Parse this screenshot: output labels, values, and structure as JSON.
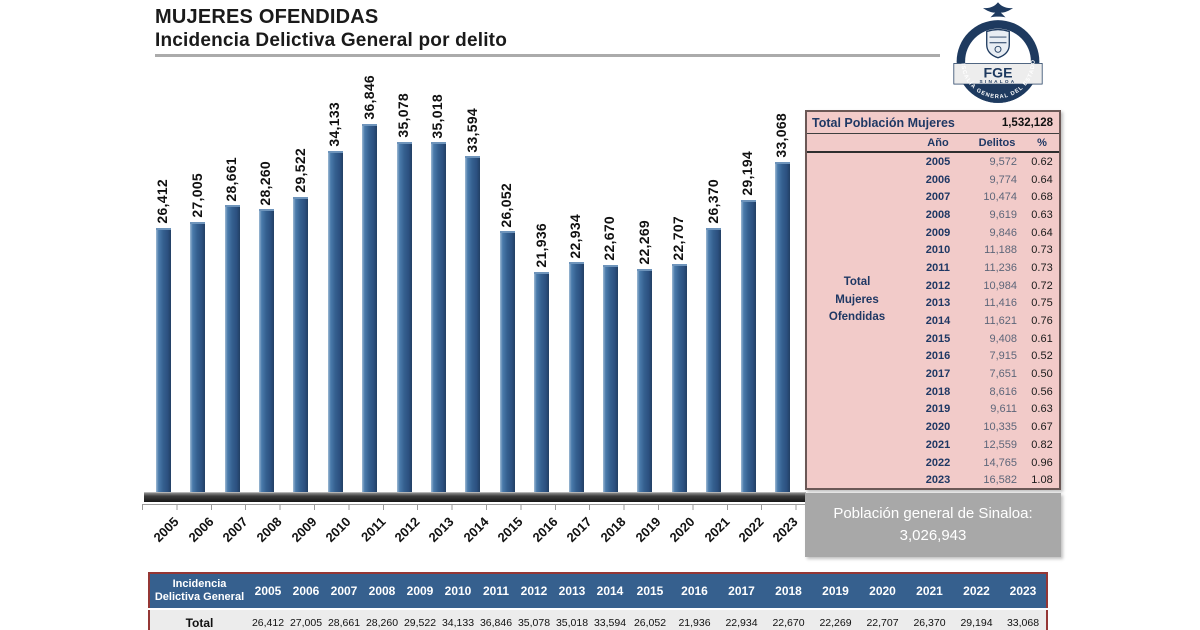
{
  "header": {
    "title_line1": "MUJERES OFENDIDAS",
    "title_line2": "Incidencia Delictiva General por delito"
  },
  "logo": {
    "acronym": "FGE",
    "state": "SINALOA",
    "ring_text": "FISCALÍA GENERAL DEL ESTADO",
    "navy": "#1e3a5f"
  },
  "chart_data": {
    "type": "bar",
    "title": "Incidencia Delictiva General por delito — Mujeres Ofendidas",
    "categories": [
      "2005",
      "2006",
      "2007",
      "2008",
      "2009",
      "2010",
      "2011",
      "2012",
      "2013",
      "2014",
      "2015",
      "2016",
      "2017",
      "2018",
      "2019",
      "2020",
      "2021",
      "2022",
      "2023"
    ],
    "values": [
      26412,
      27005,
      28661,
      28260,
      29522,
      34133,
      36846,
      35078,
      35018,
      33594,
      26052,
      21936,
      22934,
      22670,
      22269,
      22707,
      26370,
      29194,
      33068
    ],
    "xlabel": "",
    "ylabel": "",
    "ylim": [
      0,
      36846
    ],
    "grid": false,
    "legend": false,
    "value_labels": true,
    "bar_color": "#35608f"
  },
  "side_panel": {
    "table": {
      "title": "Total Población Mujeres",
      "total_population": "1,532,128",
      "row_label_lines": [
        "Total",
        "Mujeres",
        "Ofendidas"
      ],
      "columns": [
        "Año",
        "Delitos",
        "%"
      ],
      "rows": [
        {
          "year": "2005",
          "delitos": "9,572",
          "pct": "0.62"
        },
        {
          "year": "2006",
          "delitos": "9,774",
          "pct": "0.64"
        },
        {
          "year": "2007",
          "delitos": "10,474",
          "pct": "0.68"
        },
        {
          "year": "2008",
          "delitos": "9,619",
          "pct": "0.63"
        },
        {
          "year": "2009",
          "delitos": "9,846",
          "pct": "0.64"
        },
        {
          "year": "2010",
          "delitos": "11,188",
          "pct": "0.73"
        },
        {
          "year": "2011",
          "delitos": "11,236",
          "pct": "0.73"
        },
        {
          "year": "2012",
          "delitos": "10,984",
          "pct": "0.72"
        },
        {
          "year": "2013",
          "delitos": "11,416",
          "pct": "0.75"
        },
        {
          "year": "2014",
          "delitos": "11,621",
          "pct": "0.76"
        },
        {
          "year": "2015",
          "delitos": "9,408",
          "pct": "0.61"
        },
        {
          "year": "2016",
          "delitos": "7,915",
          "pct": "0.52"
        },
        {
          "year": "2017",
          "delitos": "7,651",
          "pct": "0.50"
        },
        {
          "year": "2018",
          "delitos": "8,616",
          "pct": "0.56"
        },
        {
          "year": "2019",
          "delitos": "9,611",
          "pct": "0.63"
        },
        {
          "year": "2020",
          "delitos": "10,335",
          "pct": "0.67"
        },
        {
          "year": "2021",
          "delitos": "12,559",
          "pct": "0.82"
        },
        {
          "year": "2022",
          "delitos": "14,765",
          "pct": "0.96"
        },
        {
          "year": "2023",
          "delitos": "16,582",
          "pct": "1.08"
        }
      ]
    },
    "population_box": {
      "line1": "Población general de Sinaloa:",
      "line2": "3,026,943"
    }
  },
  "bottom_table": {
    "header_label": "Incidencia Delictiva General",
    "row_label": "Total"
  },
  "colors": {
    "bar_blue": "#35608f",
    "table_pink": "#f2cbc9",
    "navy_text": "#1f3864",
    "bottom_header_blue": "#36608e",
    "bottom_border_red": "#953735",
    "gray_box": "#a8a8a8",
    "underline_gray": "#ababab"
  }
}
